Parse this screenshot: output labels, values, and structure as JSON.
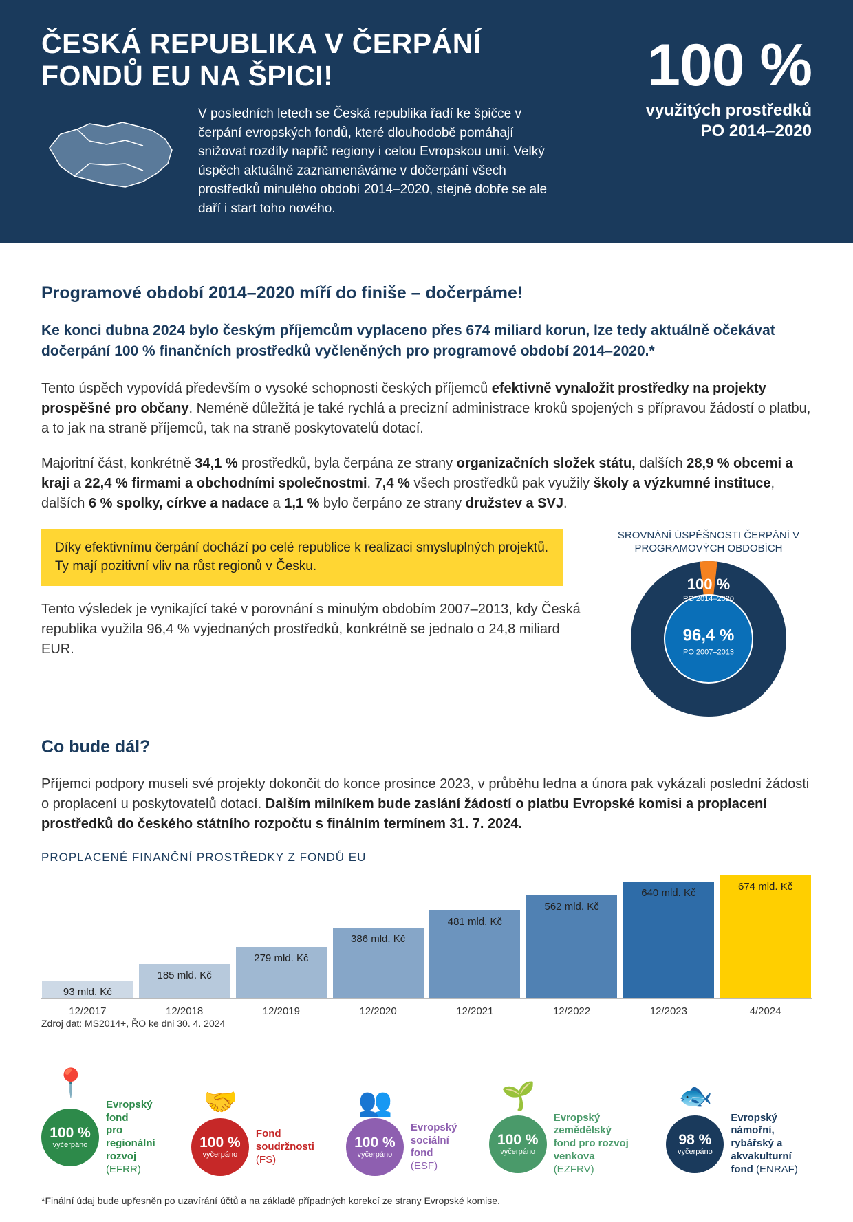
{
  "hero": {
    "title": "ČESKÁ REPUBLIKA V ČERPÁNÍ FONDŮ EU NA ŠPICI!",
    "paragraph": "V posledních letech se Česká republika řadí ke špičce v čerpání evropských fondů, které dlouhodobě pomáhají snižovat rozdíly napříč regiony i celou Evropskou unií. Velký úspěch aktuálně zaznamenáváme v dočerpání všech prostředků minulého období 2014–2020, stejně dobře se ale daří i start toho nového.",
    "stat_value": "100 %",
    "stat_sub_line1": "využitých prostředků",
    "stat_sub_line2": "PO 2014–2020",
    "map_fill": "#5a7a9a",
    "map_stroke": "#ffffff",
    "bg_color": "#1a3a5c"
  },
  "s1": {
    "heading": "Programové období 2014–2020 míří do finiše – dočerpáme!",
    "lead_html": "Ke konci dubna 2024 bylo českým příjemcům vyplaceno přes 674 miliard korun, lze tedy aktuálně očekávat dočerpání 100 % finančních prostředků vyčleněných pro programové období 2014–2020.*",
    "p1_html": "Tento úspěch vypovídá především o vysoké schopnosti českých příjemců <strong>efektivně vynaložit prostředky na projekty prospěšné pro občany</strong>. Neméně důležitá je také rychlá a precizní administrace kroků spojených s přípravou žádostí o platbu, a to jak na straně příjemců, tak na straně poskytovatelů dotací.",
    "p2_html": "Majoritní část, konkrétně <strong>34,1 %</strong> prostředků, byla čerpána ze strany <strong>organizačních složek státu,</strong> dalších <strong>28,9 % obcemi a kraji</strong> a <strong>22,4 % firmami a obchodními společnostmi</strong>. <strong>7,4 %</strong> všech prostředků pak využily <strong>školy a výzkumné instituce</strong>, dalších <strong>6 % spolky, církve a nadace</strong> a <strong>1,1 %</strong> bylo čerpáno ze strany <strong>družstev a SVJ</strong>.",
    "callout_html": "Díky efektivnímu čerpání dochází po celé republice k realizaci smysluplných projektů.<br>Ty mají pozitivní vliv na růst regionů v Česku.",
    "callout_bg": "#ffd633",
    "p3": "Tento výsledek je vynikající také v porovnání s minulým obdobím 2007–2013, kdy Česká republika využila 96,4 % vyjednaných prostředků, konkrétně se jednalo o 24,8 miliard EUR."
  },
  "donut": {
    "title": "SROVNÁNÍ ÚSPĚŠNOSTI ČERPÁNÍ V PROGRAMOVÝCH OBDOBÍCH",
    "outer_color": "#1a3a5c",
    "slice_color": "#f58220",
    "inner_bg": "#0a6fb8",
    "center_stroke": "#ffffff",
    "slice_degrees": 13,
    "outer_pct": "100 %",
    "outer_sub": "PO 2014–2020",
    "inner_pct": "96,4 %",
    "inner_sub": "PO 2007–2013"
  },
  "s2": {
    "heading": "Co bude dál?",
    "p_html": "Příjemci podpory museli své projekty dokončit do konce prosince 2023, v průběhu ledna a února pak vykázali poslední žádosti o proplacení u poskytovatelů dotací. <strong>Dalším milníkem bude zaslání žádostí o platbu Evropské komisi a proplacení prostředků do českého státního rozpočtu s finálním termínem 31. 7. 2024.</strong>"
  },
  "bar_chart": {
    "title": "PROPLACENÉ FINANČNÍ PROSTŘEDKY Z FONDŮ EU",
    "y_max": 674,
    "bars": [
      {
        "label": "12/2017",
        "value": 93,
        "text": "93 mld. Kč",
        "color": "#cdd9e6"
      },
      {
        "label": "12/2018",
        "value": 185,
        "text": "185 mld. Kč",
        "color": "#b7c9dc"
      },
      {
        "label": "12/2019",
        "value": 279,
        "text": "279 mld. Kč",
        "color": "#9fb8d2"
      },
      {
        "label": "12/2020",
        "value": 386,
        "text": "386 mld. Kč",
        "color": "#86a6c8"
      },
      {
        "label": "12/2021",
        "value": 481,
        "text": "481 mld. Kč",
        "color": "#6c94be"
      },
      {
        "label": "12/2022",
        "value": 562,
        "text": "562 mld. Kč",
        "color": "#5081b3"
      },
      {
        "label": "12/2023",
        "value": 640,
        "text": "640 mld. Kč",
        "color": "#2e6ca8"
      },
      {
        "label": "4/2024",
        "value": 674,
        "text": "674 mld. Kč",
        "color": "#ffcf00"
      }
    ],
    "source": "Zdroj dat: MS2014+, ŘO ke dni 30. 4. 2024"
  },
  "funds": [
    {
      "pct": "100 %",
      "sub": "vyčerpáno",
      "badge_color": "#2d8a4a",
      "label_color": "#2d8a4a",
      "icon": "📍",
      "name_html": "Evropský fond<br>pro regionální<br>rozvoj <span class=\"abbr\">(EFRR)</span>"
    },
    {
      "pct": "100 %",
      "sub": "vyčerpáno",
      "badge_color": "#c62828",
      "label_color": "#c62828",
      "icon": "🤝",
      "name_html": "Fond<br>soudržnosti<br><span class=\"abbr\">(FS)</span>"
    },
    {
      "pct": "100 %",
      "sub": "vyčerpáno",
      "badge_color": "#8e5fb0",
      "label_color": "#8e5fb0",
      "icon": "👥",
      "name_html": "Evropský<br>sociální fond<br><span class=\"abbr\">(ESF)</span>"
    },
    {
      "pct": "100 %",
      "sub": "vyčerpáno",
      "badge_color": "#4a9a6a",
      "label_color": "#4a9a6a",
      "icon": "🌱",
      "name_html": "Evropský zemědělský<br>fond pro rozvoj<br>venkova <span class=\"abbr\">(EZFRV)</span>"
    },
    {
      "pct": "98 %",
      "sub": "vyčerpáno",
      "badge_color": "#1a3a5c",
      "label_color": "#1a3a5c",
      "icon": "🐟",
      "name_html": "Evropský námořní,<br>rybářský a akvakulturní<br>fond <span class=\"abbr\">(ENRAF)</span>"
    }
  ],
  "footnote": "*Finální údaj bude upřesněn po uzavírání účtů a na základě případných korekcí ze strany Evropské komise."
}
